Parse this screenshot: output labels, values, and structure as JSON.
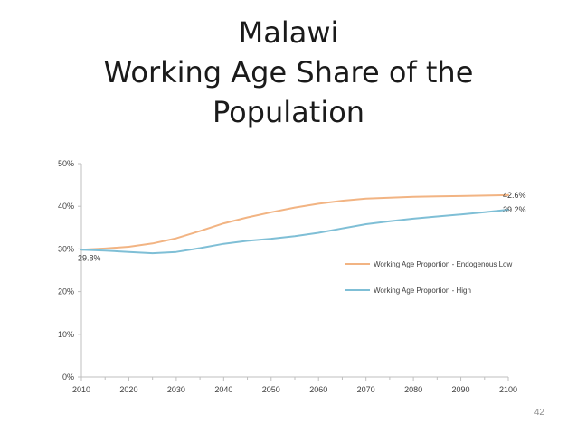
{
  "slide": {
    "title_lines": [
      "Malawi",
      "Working Age Share of the",
      "Population"
    ],
    "page_number": "42"
  },
  "chart_data": {
    "type": "line",
    "x": [
      2010,
      2015,
      2020,
      2025,
      2030,
      2035,
      2040,
      2045,
      2050,
      2055,
      2060,
      2065,
      2070,
      2075,
      2080,
      2085,
      2090,
      2095,
      2100
    ],
    "series": [
      {
        "name": "Working Age Proportion - Endogenous Low",
        "color": "#f2b483",
        "values": [
          29.8,
          30.1,
          30.5,
          31.3,
          32.5,
          34.2,
          36.0,
          37.4,
          38.6,
          39.7,
          40.6,
          41.3,
          41.8,
          42.0,
          42.2,
          42.3,
          42.4,
          42.5,
          42.6
        ]
      },
      {
        "name": "Working Age Proportion - High",
        "color": "#7fbfd6",
        "values": [
          29.8,
          29.6,
          29.3,
          29.0,
          29.3,
          30.2,
          31.2,
          31.9,
          32.4,
          33.0,
          33.8,
          34.8,
          35.8,
          36.5,
          37.1,
          37.6,
          38.1,
          38.6,
          39.2
        ]
      }
    ],
    "data_labels": [
      {
        "text": "29.8%",
        "x": 2010,
        "y": 29.8,
        "anchor": "below-left"
      },
      {
        "text": "42.6%",
        "x": 2100,
        "y": 42.6,
        "anchor": "right"
      },
      {
        "text": "39.2%",
        "x": 2100,
        "y": 39.2,
        "anchor": "right"
      }
    ],
    "x_ticks": [
      "2010",
      "2020",
      "2030",
      "2040",
      "2050",
      "2060",
      "2070",
      "2080",
      "2090",
      "2100"
    ],
    "x_tick_values": [
      2010,
      2020,
      2030,
      2040,
      2050,
      2060,
      2070,
      2080,
      2090,
      2100
    ],
    "y_ticks": [
      "0%",
      "10%",
      "20%",
      "30%",
      "40%",
      "50%"
    ],
    "y_tick_values": [
      0,
      10,
      20,
      30,
      40,
      50
    ],
    "xlim": [
      2010,
      2100
    ],
    "ylim": [
      0,
      50
    ],
    "grid": false,
    "legend_position": "right-middle",
    "axis_color": "#bfbfbf",
    "tick_label_color": "#404040"
  }
}
